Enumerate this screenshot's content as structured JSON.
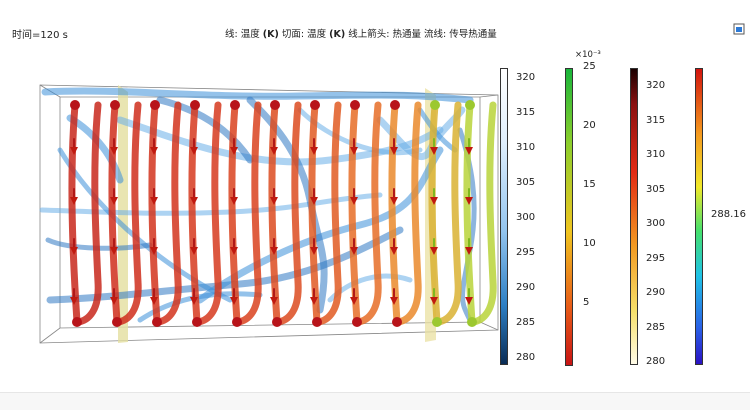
{
  "header": {
    "time_label": "时间=120 s",
    "line_label": "线:",
    "line_value": "温度",
    "line_unit": "(K)",
    "slice_label": "切面:",
    "slice_value": "温度",
    "slice_unit": "(K)",
    "arrow_label": "线上箭头:",
    "arrow_value": "热通量",
    "stream_label": "流线:",
    "stream_value": "传导热通量",
    "corner_icon": "window-restore-icon"
  },
  "legends": {
    "slice_temp": {
      "ticks": [
        "320",
        "315",
        "310",
        "305",
        "300",
        "295",
        "290",
        "285",
        "280"
      ],
      "colormap": "light-blue-to-dark"
    },
    "arrow_flux": {
      "exponent": "×10⁻³",
      "ticks": [
        "25",
        "20",
        "15",
        "10",
        "5"
      ],
      "colormap": "red-yellow-green"
    },
    "line_temp": {
      "ticks": [
        "320",
        "315",
        "310",
        "305",
        "300",
        "295",
        "290",
        "285",
        "280"
      ],
      "colormap": "white-yellow-red-black"
    },
    "stream_flux": {
      "ticks": [
        "288.16"
      ],
      "colormap": "rainbow"
    }
  },
  "colors": {
    "coil_hot": "#d6311f",
    "coil_mid": "#e8832d",
    "coil_cool": "#b9d33a",
    "streamline": "#4f9fe0",
    "slice": "#d9d79a"
  }
}
